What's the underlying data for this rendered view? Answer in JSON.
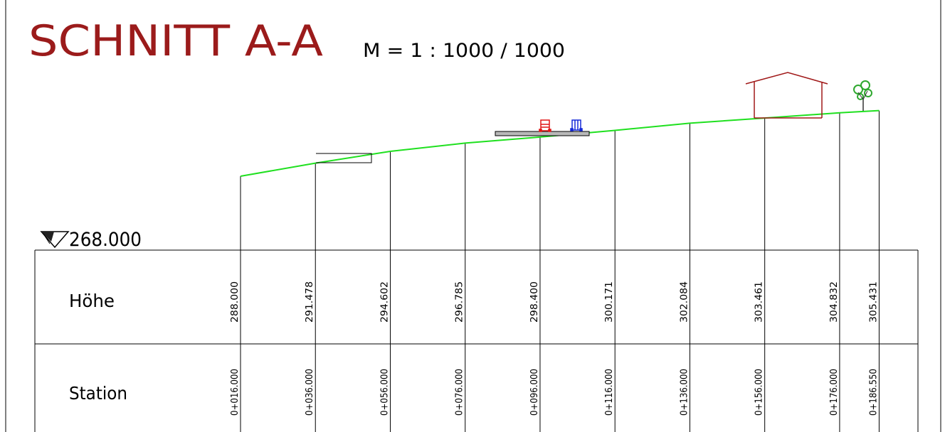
{
  "drawing": {
    "title": "SCHNITT A-A",
    "scale": "M = 1 : 1000 / 1000",
    "reference_level": "268.000",
    "row_labels": {
      "height": "Höhe",
      "station": "Station"
    },
    "stations": [
      {
        "station": "0+016.000",
        "height": "288.000"
      },
      {
        "station": "0+036.000",
        "height": "291.478"
      },
      {
        "station": "0+056.000",
        "height": "294.602"
      },
      {
        "station": "0+076.000",
        "height": "296.785"
      },
      {
        "station": "0+096.000",
        "height": "298.400"
      },
      {
        "station": "0+116.000",
        "height": "300.171"
      },
      {
        "station": "0+136.000",
        "height": "302.084"
      },
      {
        "station": "0+156.000",
        "height": "303.461"
      },
      {
        "station": "0+176.000",
        "height": "304.832"
      },
      {
        "station": "0+186.550",
        "height": "305.431"
      }
    ],
    "colors": {
      "title": "#9b1b1b",
      "terrain": "#1fe01f",
      "line": "#000000",
      "house": "#a01818",
      "car_red": "#e01414",
      "car_blue": "#1428d8",
      "tree": "#2ea82e"
    },
    "symbols": [
      "level-triangle-icon",
      "house-icon",
      "tree-icon",
      "car-red-icon",
      "car-blue-icon"
    ]
  }
}
